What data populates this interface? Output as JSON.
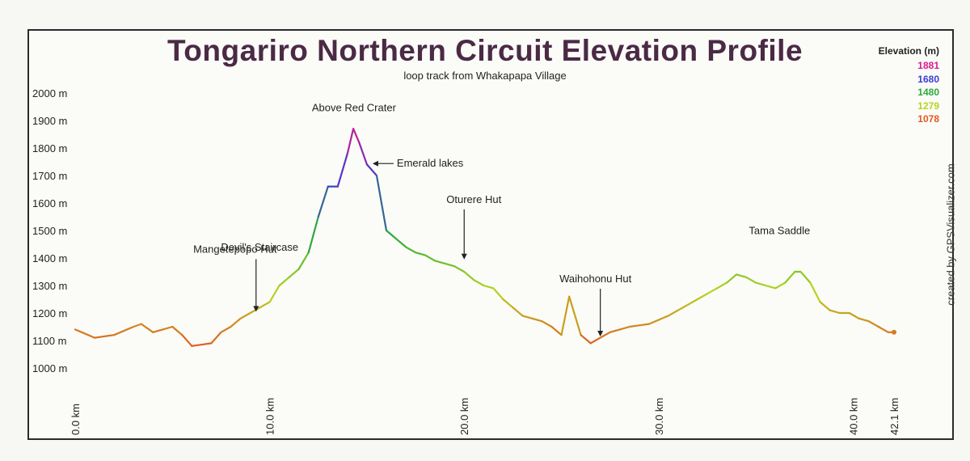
{
  "chart_data": {
    "type": "line",
    "title": "Tongariro Northern Circuit Elevation Profile",
    "subtitle": "loop track from Whakapapa Village",
    "xlim": [
      0,
      42.1
    ],
    "ylim": [
      950,
      2050
    ],
    "y_ticks": [
      1000,
      1100,
      1200,
      1300,
      1400,
      1500,
      1600,
      1700,
      1800,
      1900,
      2000
    ],
    "y_tick_labels": [
      "1000 m",
      "1100 m",
      "1200 m",
      "1300 m",
      "1400 m",
      "1500 m",
      "1600 m",
      "1700 m",
      "1800 m",
      "1900 m",
      "2000 m"
    ],
    "x_ticks": [
      0,
      10,
      20,
      30,
      40,
      42.1
    ],
    "x_tick_labels": [
      "0.0 km",
      "10.0 km",
      "20.0 km",
      "30.0 km",
      "40.0 km",
      "42.1 km"
    ],
    "grid": false,
    "legend_title": "Elevation (m)",
    "legend_items": [
      {
        "label": "1881",
        "color": "#d81b8a"
      },
      {
        "label": "1680",
        "color": "#3b3bd4"
      },
      {
        "label": "1480",
        "color": "#2eaa3a"
      },
      {
        "label": "1279",
        "color": "#b5d61e"
      },
      {
        "label": "1078",
        "color": "#e05a1e"
      }
    ],
    "legend_position": "top-right",
    "color_scale": [
      {
        "elev": 1078,
        "color": "#e05a1e"
      },
      {
        "elev": 1279,
        "color": "#b5d61e"
      },
      {
        "elev": 1480,
        "color": "#2eaa3a"
      },
      {
        "elev": 1680,
        "color": "#3b3bd4"
      },
      {
        "elev": 1881,
        "color": "#d81b8a"
      }
    ],
    "series": [
      {
        "x": [
          0,
          1,
          2,
          3,
          3.4,
          4,
          4.5,
          5,
          5.5,
          6,
          7,
          7.5,
          8,
          8.5,
          9,
          9.5,
          10,
          10.5,
          11,
          11.5,
          12,
          12.5,
          13,
          13.5,
          14,
          14.3,
          14.6,
          15,
          15.5,
          16,
          16.5,
          17,
          17.5,
          18,
          18.5,
          19,
          19.5,
          20,
          20.5,
          21,
          21.5,
          22,
          22.5,
          23,
          23.5,
          24,
          24.5,
          25,
          25.4,
          26,
          26.5,
          27,
          27.5,
          28,
          28.5,
          29,
          29.5,
          30,
          30.5,
          31,
          31.5,
          32,
          32.5,
          33,
          33.5,
          34,
          34.5,
          35,
          35.5,
          36,
          36.5,
          37,
          37.3,
          37.8,
          38.3,
          38.8,
          39.3,
          39.8,
          40.3,
          40.8,
          41.3,
          41.8,
          42.1
        ],
        "y": [
          1140,
          1110,
          1120,
          1150,
          1160,
          1130,
          1140,
          1150,
          1120,
          1080,
          1090,
          1130,
          1150,
          1180,
          1200,
          1220,
          1240,
          1300,
          1330,
          1360,
          1420,
          1550,
          1660,
          1660,
          1780,
          1870,
          1820,
          1740,
          1700,
          1500,
          1470,
          1440,
          1420,
          1410,
          1390,
          1380,
          1370,
          1350,
          1320,
          1300,
          1290,
          1250,
          1220,
          1190,
          1180,
          1170,
          1150,
          1120,
          1260,
          1120,
          1090,
          1110,
          1130,
          1140,
          1150,
          1155,
          1160,
          1175,
          1190,
          1210,
          1230,
          1250,
          1270,
          1290,
          1310,
          1340,
          1330,
          1310,
          1300,
          1290,
          1310,
          1350,
          1350,
          1310,
          1240,
          1210,
          1200,
          1200,
          1180,
          1170,
          1150,
          1130,
          1130
        ]
      }
    ],
    "annotations": [
      {
        "label": "Above Red Crater",
        "x": 14.5,
        "y": 1881
      },
      {
        "label": "Emerald lakes",
        "x": 15.0,
        "y": 1720
      },
      {
        "label": "Devil's Staircase",
        "x": 10.9,
        "y": 1420
      },
      {
        "label": "Mangetepopo Hut",
        "x": 9.3,
        "y": 1190
      },
      {
        "label": "Oturere Hut",
        "x": 20.0,
        "y": 1380
      },
      {
        "label": "Waihohonu Hut",
        "x": 27.0,
        "y": 1100
      },
      {
        "label": "Tama Saddle",
        "x": 34.8,
        "y": 1340
      }
    ]
  },
  "credit": "created by GPSVisualizer.com"
}
